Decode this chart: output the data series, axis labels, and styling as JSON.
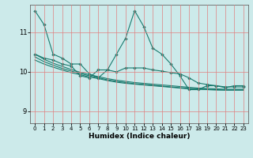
{
  "xlabel": "Humidex (Indice chaleur)",
  "xlim": [
    -0.5,
    23.5
  ],
  "ylim": [
    8.7,
    11.7
  ],
  "yticks": [
    9,
    10,
    11
  ],
  "xticks": [
    0,
    1,
    2,
    3,
    4,
    5,
    6,
    7,
    8,
    9,
    10,
    11,
    12,
    13,
    14,
    15,
    16,
    17,
    18,
    19,
    20,
    21,
    22,
    23
  ],
  "background_color": "#cceaea",
  "grid_color": "#e08080",
  "line_color": "#1a7a6e",
  "x": [
    0,
    1,
    2,
    3,
    4,
    5,
    6,
    7,
    8,
    9,
    10,
    11,
    12,
    13,
    14,
    15,
    16,
    17,
    18,
    19,
    20,
    21,
    22,
    23
  ],
  "y_main": [
    11.55,
    11.2,
    10.45,
    10.35,
    10.2,
    10.2,
    9.95,
    9.85,
    10.05,
    10.45,
    10.85,
    11.55,
    11.15,
    10.6,
    10.45,
    10.2,
    9.9,
    9.55,
    9.55,
    9.65,
    9.65,
    9.6,
    9.65,
    9.65
  ],
  "y_mid": [
    10.45,
    10.35,
    10.3,
    10.2,
    10.15,
    9.9,
    9.85,
    10.05,
    10.05,
    10.0,
    10.1,
    10.1,
    10.1,
    10.05,
    10.02,
    9.98,
    9.95,
    9.85,
    9.72,
    9.68,
    9.65,
    9.62,
    9.62,
    9.62
  ],
  "y_smooth1": [
    10.45,
    10.32,
    10.22,
    10.14,
    10.06,
    9.99,
    9.93,
    9.88,
    9.83,
    9.79,
    9.76,
    9.73,
    9.71,
    9.69,
    9.67,
    9.65,
    9.63,
    9.61,
    9.59,
    9.58,
    9.57,
    9.56,
    9.56,
    9.56
  ],
  "y_smooth2": [
    10.38,
    10.26,
    10.17,
    10.09,
    10.02,
    9.96,
    9.9,
    9.85,
    9.8,
    9.76,
    9.73,
    9.7,
    9.68,
    9.66,
    9.64,
    9.62,
    9.6,
    9.58,
    9.57,
    9.56,
    9.55,
    9.54,
    9.54,
    9.54
  ],
  "y_smooth3": [
    10.3,
    10.2,
    10.12,
    10.05,
    9.98,
    9.93,
    9.87,
    9.83,
    9.78,
    9.74,
    9.71,
    9.69,
    9.67,
    9.65,
    9.63,
    9.61,
    9.59,
    9.57,
    9.56,
    9.55,
    9.54,
    9.54,
    9.54,
    9.54
  ]
}
